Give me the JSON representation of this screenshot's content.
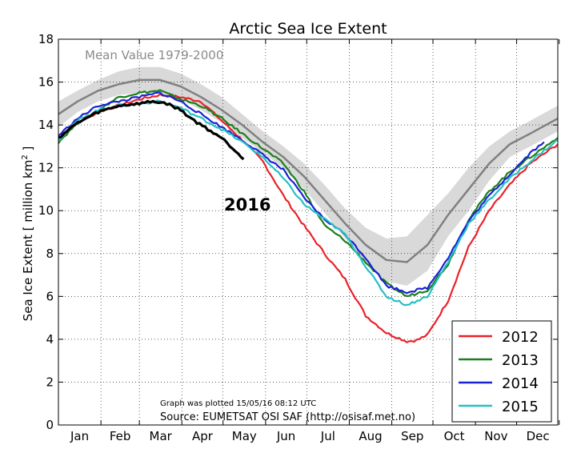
{
  "chart_data": {
    "type": "line",
    "title": "Arctic Sea Ice Extent",
    "xlabel": "",
    "ylabel": "Sea Ice Extent [ million km",
    "ylabel_sup": "2",
    "ylabel_close": " ]",
    "ylim": [
      0,
      18
    ],
    "y_ticks": [
      0,
      2,
      4,
      6,
      8,
      10,
      12,
      14,
      16,
      18
    ],
    "x_tick_labels": [
      "Jan",
      "Feb",
      "Mar",
      "Apr",
      "May",
      "Jun",
      "Jul",
      "Aug",
      "Sep",
      "Oct",
      "Nov",
      "Dec"
    ],
    "grid": true,
    "legend_position": "bottom-right",
    "mean_band": {
      "label": "Mean Value 1979-2000",
      "color": "#808080",
      "band_color": "#d9d9d9",
      "x": [
        1,
        15,
        30,
        45,
        60,
        75,
        90,
        105,
        120,
        135,
        150,
        165,
        180,
        195,
        210,
        225,
        240,
        255,
        270,
        285,
        300,
        315,
        330,
        345,
        365
      ],
      "mean": [
        14.5,
        15.1,
        15.6,
        15.9,
        16.1,
        16.1,
        15.8,
        15.3,
        14.7,
        14.0,
        13.2,
        12.5,
        11.6,
        10.5,
        9.4,
        8.4,
        7.7,
        7.6,
        8.4,
        9.8,
        11.0,
        12.2,
        13.1,
        13.6,
        14.3
      ],
      "upper": [
        15.1,
        15.6,
        16.1,
        16.5,
        16.7,
        16.7,
        16.4,
        15.9,
        15.3,
        14.5,
        13.7,
        13.0,
        12.2,
        11.2,
        10.1,
        9.2,
        8.7,
        8.8,
        9.8,
        10.8,
        12.0,
        13.0,
        13.7,
        14.2,
        14.9
      ],
      "lower": [
        13.9,
        14.6,
        15.1,
        15.4,
        15.5,
        15.5,
        15.2,
        14.7,
        14.1,
        13.4,
        12.7,
        12.0,
        11.0,
        9.9,
        8.7,
        7.6,
        6.7,
        6.5,
        7.2,
        8.8,
        10.0,
        11.4,
        12.5,
        13.0,
        13.7
      ]
    },
    "series": [
      {
        "name": "2012",
        "color": "#e8232a",
        "x": [
          1,
          15,
          30,
          45,
          60,
          75,
          90,
          105,
          120,
          135,
          150,
          165,
          180,
          195,
          210,
          225,
          240,
          255,
          262,
          270,
          285,
          300,
          315,
          330,
          345,
          365
        ],
        "y": [
          13.5,
          14.1,
          14.6,
          14.9,
          15.2,
          15.4,
          15.3,
          15.1,
          14.2,
          13.3,
          12.3,
          10.7,
          9.3,
          8.0,
          6.8,
          5.1,
          4.3,
          3.9,
          3.95,
          4.2,
          5.8,
          8.3,
          10.0,
          11.2,
          12.2,
          13.1
        ]
      },
      {
        "name": "2013",
        "color": "#1b7f1b",
        "x": [
          1,
          15,
          30,
          45,
          60,
          75,
          90,
          105,
          120,
          135,
          150,
          165,
          180,
          195,
          210,
          225,
          240,
          255,
          270,
          285,
          300,
          315,
          330,
          345,
          365
        ],
        "y": [
          13.2,
          14.1,
          14.7,
          15.3,
          15.5,
          15.6,
          15.2,
          14.9,
          14.3,
          13.6,
          12.9,
          12.2,
          10.9,
          9.3,
          8.6,
          7.6,
          6.6,
          6.0,
          6.3,
          7.5,
          9.6,
          10.9,
          11.8,
          12.5,
          13.4
        ]
      },
      {
        "name": "2014",
        "color": "#1a22d6",
        "x": [
          1,
          15,
          30,
          45,
          60,
          75,
          90,
          105,
          120,
          135,
          150,
          165,
          180,
          195,
          210,
          225,
          240,
          255,
          270,
          285,
          300,
          315,
          330,
          345,
          355
        ],
        "y": [
          13.5,
          14.3,
          14.9,
          15.1,
          15.3,
          15.5,
          15.1,
          14.5,
          13.9,
          13.3,
          12.6,
          11.9,
          10.6,
          9.6,
          8.9,
          7.8,
          6.5,
          6.2,
          6.4,
          7.8,
          9.5,
          10.7,
          11.7,
          12.7,
          13.2
        ]
      },
      {
        "name": "2015",
        "color": "#27c0c4",
        "x": [
          1,
          15,
          30,
          45,
          60,
          75,
          90,
          105,
          120,
          135,
          150,
          165,
          180,
          195,
          210,
          225,
          240,
          255,
          270,
          285,
          300,
          315,
          330,
          345,
          365
        ],
        "y": [
          13.3,
          14.2,
          14.7,
          14.9,
          15.0,
          15.1,
          14.8,
          14.3,
          13.8,
          13.2,
          12.5,
          11.5,
          10.3,
          9.6,
          8.9,
          7.4,
          6.0,
          5.6,
          6.0,
          7.6,
          9.4,
          10.5,
          11.5,
          12.3,
          13.3
        ]
      },
      {
        "name": "2016",
        "color": "#000000",
        "x": [
          1,
          15,
          30,
          45,
          60,
          70,
          80,
          90,
          100,
          110,
          120,
          130,
          136
        ],
        "y": [
          13.4,
          14.1,
          14.6,
          14.9,
          15.0,
          15.1,
          15.0,
          14.7,
          14.2,
          13.8,
          13.4,
          12.8,
          12.4
        ]
      }
    ],
    "legend": [
      "2012",
      "2013",
      "2014",
      "2015"
    ],
    "annotation": "2016",
    "plotted_note": "Graph was plotted 15/05/16 08:12 UTC",
    "source_note": "Source: EUMETSAT OSI SAF (http://osisaf.met.no)"
  }
}
